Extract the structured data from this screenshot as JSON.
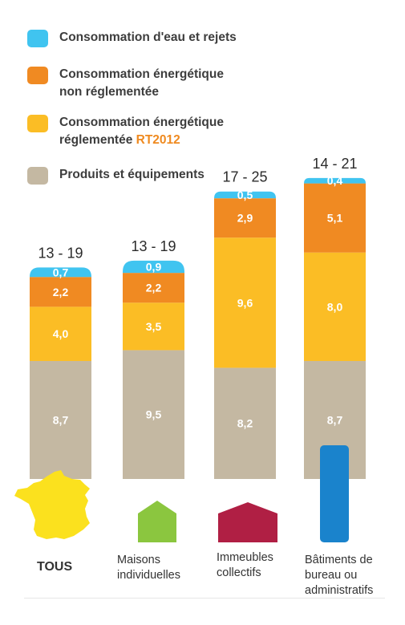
{
  "legend": [
    {
      "label": "Consommation d'eau et rejets",
      "color": "#40c4f0"
    },
    {
      "label": "Consommation énergétique\nnon réglementée",
      "color": "#f08a22"
    },
    {
      "label": "Consommation énergétique\nréglementée",
      "accent": "RT2012",
      "color": "#fbbd25"
    },
    {
      "label": "Produits et équipements",
      "color": "#c4b8a2"
    }
  ],
  "chart_data": {
    "type": "bar",
    "stacked": true,
    "categories": [
      "TOUS",
      "Maisons\nindividuelles",
      "Immeubles\ncollectifs",
      "Bâtiments de\nbureau ou\nadministratifs"
    ],
    "ranges": [
      "13 - 19",
      "13 - 19",
      "17 - 25",
      "14 - 21"
    ],
    "series": [
      {
        "name": "Produits et équipements",
        "values": [
          8.7,
          9.5,
          8.2,
          8.7
        ],
        "labels": [
          "8,7",
          "9,5",
          "8,2",
          "8,7"
        ],
        "color": "#c4b8a2"
      },
      {
        "name": "Consommation énergétique réglementée RT2012",
        "values": [
          4.0,
          3.5,
          9.6,
          8.0
        ],
        "labels": [
          "4,0",
          "3,5",
          "9,6",
          "8,0"
        ],
        "color": "#fbbd25"
      },
      {
        "name": "Consommation énergétique non réglementée",
        "values": [
          2.2,
          2.2,
          2.9,
          5.1
        ],
        "labels": [
          "2,2",
          "2,2",
          "2,9",
          "5,1"
        ],
        "color": "#f08a22"
      },
      {
        "name": "Consommation d'eau et rejets",
        "values": [
          0.7,
          0.9,
          0.5,
          0.4
        ],
        "labels": [
          "0,7",
          "0,9",
          "0,5",
          "0,4"
        ],
        "color": "#40c4f0"
      }
    ]
  },
  "icons": [
    {
      "name": "france-map-icon",
      "color": "#fbe11e"
    },
    {
      "name": "house-icon",
      "color": "#8bc63f"
    },
    {
      "name": "building-icon",
      "color": "#b01f44"
    },
    {
      "name": "office-tower-icon",
      "color": "#1a83cc"
    }
  ]
}
